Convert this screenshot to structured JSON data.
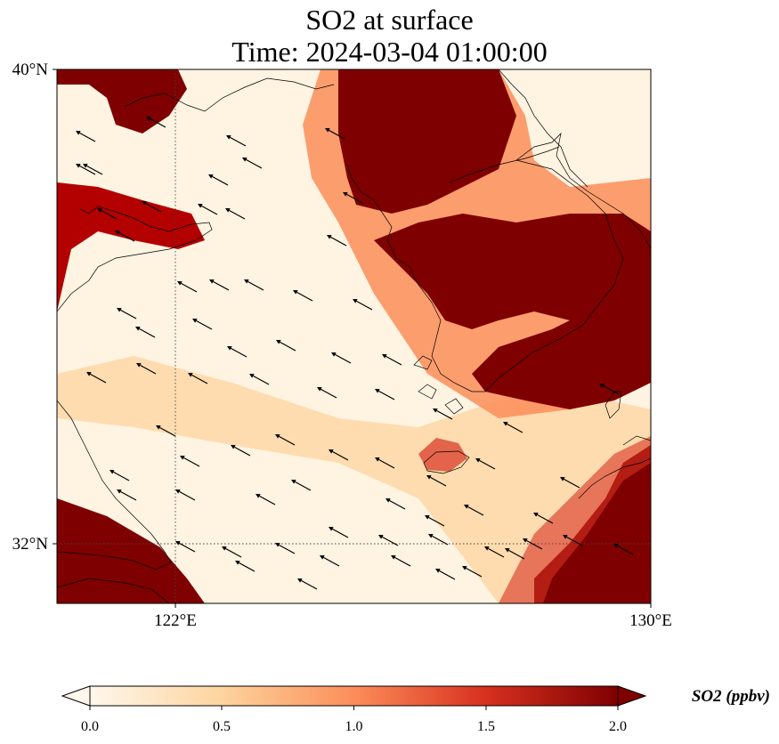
{
  "title": {
    "line1": "SO2 at surface",
    "line2": "Time: 2024-03-04 01:00:00"
  },
  "map": {
    "variable": "SO2",
    "level": "surface",
    "lon_range": [
      118,
      130
    ],
    "lat_range": [
      30.8,
      40
    ],
    "gridlines": {
      "style": "dotted",
      "lons": [
        122
      ],
      "lats": [
        32
      ]
    },
    "lat_labels": [
      "40°N",
      "32°N"
    ],
    "lon_labels": [
      "122°E",
      "130°E"
    ],
    "wind_vectors": "shown",
    "wind_direction": "from southeast toward northwest"
  },
  "colorbar": {
    "label": "SO2 (ppbv)",
    "colormap": "OrRd",
    "range": [
      0.0,
      2.0
    ],
    "ticks": [
      "0.0",
      "0.5",
      "1.0",
      "1.5",
      "2.0"
    ],
    "extend": "both",
    "colors": [
      "#fff7ec",
      "#fdd49e",
      "#fc8d59",
      "#d7301f",
      "#7f0000"
    ]
  }
}
